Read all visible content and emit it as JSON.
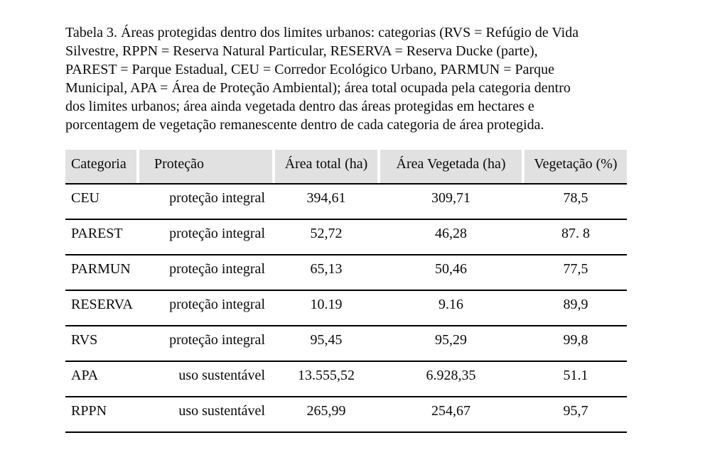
{
  "caption": {
    "lines": [
      "Tabela 3. Áreas protegidas dentro dos limites urbanos: categorias (RVS = Refúgio de Vida",
      "Silvestre, RPPN = Reserva Natural Particular, RESERVA = Reserva Ducke (parte),",
      "PAREST = Parque Estadual, CEU = Corredor Ecológico Urbano, PARMUN = Parque",
      "Municipal, APA = Área de Proteção Ambiental); área total ocupada pela categoria dentro",
      "dos limites urbanos; área ainda vegetada dentro das áreas protegidas em hectares e",
      "porcentagem de vegetação remanescente dentro de cada categoria de área protegida."
    ]
  },
  "table": {
    "colors": {
      "header_bg": "#e1e1e1",
      "rule": "#000000",
      "text": "#0a0a0a"
    },
    "headers": {
      "categoria": "Categoria",
      "protecao": "Proteção",
      "area_total": "Área total (ha)",
      "area_vegetada": "Área Vegetada (ha)",
      "vegetacao": "Vegetação (%)"
    },
    "rows": [
      {
        "categoria": "CEU",
        "protecao": "proteção integral",
        "area_total": "394,61",
        "area_vegetada": "309,71",
        "vegetacao": "78,5"
      },
      {
        "categoria": "PAREST",
        "protecao": "proteção integral",
        "area_total": "52,72",
        "area_vegetada": "46,28",
        "vegetacao": "87. 8"
      },
      {
        "categoria": "PARMUN",
        "protecao": "proteção integral",
        "area_total": "65,13",
        "area_vegetada": "50,46",
        "vegetacao": "77,5"
      },
      {
        "categoria": "RESERVA",
        "protecao": "proteção integral",
        "area_total": "10.19",
        "area_vegetada": "9.16",
        "vegetacao": "89,9"
      },
      {
        "categoria": "RVS",
        "protecao": "proteção integral",
        "area_total": "95,45",
        "area_vegetada": "95,29",
        "vegetacao": "99,8"
      },
      {
        "categoria": "APA",
        "protecao": "uso sustentável",
        "area_total": "13.555,52",
        "area_vegetada": "6.928,35",
        "vegetacao": "51.1"
      },
      {
        "categoria": "RPPN",
        "protecao": "uso sustentável",
        "area_total": "265,99",
        "area_vegetada": "254,67",
        "vegetacao": "95,7"
      }
    ]
  }
}
